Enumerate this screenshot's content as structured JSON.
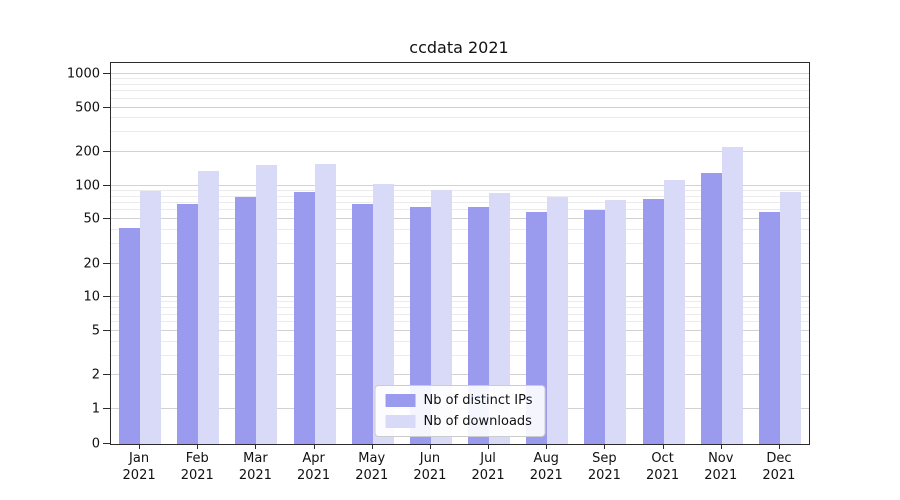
{
  "chart_data": {
    "type": "bar",
    "title": "ccdata 2021",
    "yscale": "symlog",
    "ylim": [
      0,
      1300
    ],
    "grid": true,
    "legend_position": "bottom-center-inside",
    "yticks": [
      0,
      1,
      2,
      5,
      10,
      20,
      50,
      100,
      200,
      500,
      1000
    ],
    "x": {
      "months": [
        "Jan",
        "Feb",
        "Mar",
        "Apr",
        "May",
        "Jun",
        "Jul",
        "Aug",
        "Sep",
        "Oct",
        "Nov",
        "Dec"
      ],
      "year": "2021"
    },
    "series": [
      {
        "name": "Nb of distinct IPs",
        "color": "#9a9aef",
        "values": [
          42,
          68,
          80,
          87,
          68,
          64,
          64,
          58,
          60,
          76,
          130,
          58
        ]
      },
      {
        "name": "Nb of downloads",
        "color": "#d9d9f8",
        "values": [
          90,
          135,
          152,
          157,
          103,
          92,
          86,
          79,
          75,
          112,
          220,
          88
        ]
      }
    ]
  }
}
